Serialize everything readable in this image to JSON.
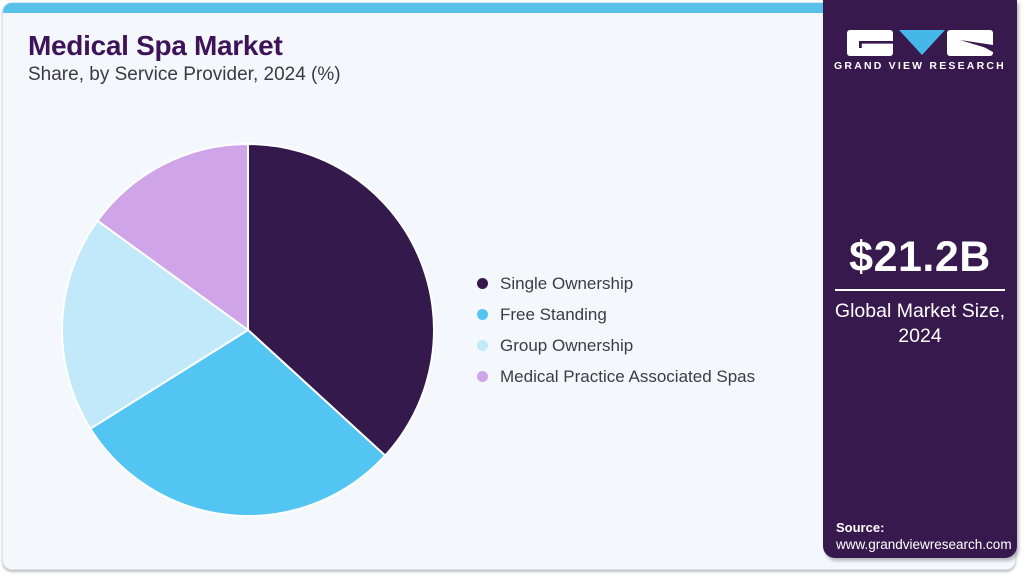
{
  "header": {
    "title": "Medical Spa Market",
    "subtitle": "Share, by Service Provider, 2024 (%)"
  },
  "chart_data": {
    "type": "pie",
    "title": "Medical Spa Market Share, by Service Provider, 2024 (%)",
    "categories": [
      "Single Ownership",
      "Free Standing",
      "Group Ownership",
      "Medical Practice Associated Spas"
    ],
    "values": [
      36.8,
      29.3,
      18.9,
      15.0
    ],
    "values_note": "percent shares estimated from slice angles; no data labels shown on chart",
    "unit": "%",
    "colors": [
      "#341a4c",
      "#52c5f2",
      "#c2e9fa",
      "#cfa4e9"
    ],
    "start_angle": "12 o'clock",
    "direction": "clockwise",
    "legend_position": "right",
    "slice_labels_shown": false
  },
  "sidebar": {
    "brand_name": "GRAND VIEW RESEARCH",
    "market_size_value": "$21.2B",
    "market_size_caption": "Global Market Size, 2024",
    "source_label": "Source:",
    "source_url": "www.grandviewresearch.com",
    "background_color": "#37194e",
    "accent_color": "#57c1e9",
    "logo_triangle_color": "#45b7e8"
  }
}
